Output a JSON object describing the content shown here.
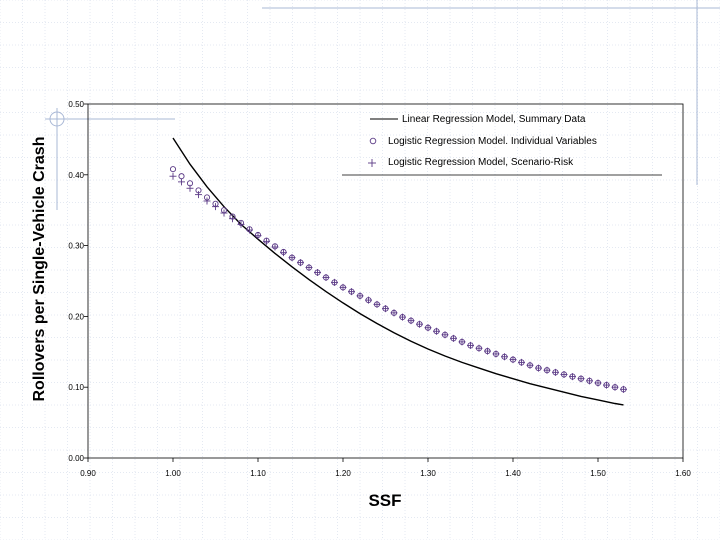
{
  "colors": {
    "grid_decoration": "#c9d3e6",
    "frame_decoration": "#a9b8d6",
    "curve": "#000000",
    "markers": "#5b3a86"
  },
  "chart_data": {
    "type": "line",
    "title": "",
    "xlabel": "SSF",
    "ylabel": "Rollovers per Single-Vehicle Crash",
    "xlim": [
      0.9,
      1.6
    ],
    "ylim": [
      0.0,
      0.5
    ],
    "x_ticks": [
      "0.90",
      "1.00",
      "1.10",
      "1.20",
      "1.30",
      "1.40",
      "1.50",
      "1.60"
    ],
    "y_ticks": [
      "0.00",
      "0.10",
      "0.20",
      "0.30",
      "0.40",
      "0.50"
    ],
    "grid": false,
    "legend_position": "top-right",
    "series": [
      {
        "name": "Linear Regression Model, Summary Data",
        "style": "line",
        "x": [
          1.0,
          1.02,
          1.04,
          1.06,
          1.08,
          1.1,
          1.12,
          1.14,
          1.16,
          1.18,
          1.2,
          1.22,
          1.24,
          1.26,
          1.28,
          1.3,
          1.32,
          1.34,
          1.36,
          1.38,
          1.4,
          1.42,
          1.44,
          1.46,
          1.48,
          1.5,
          1.52,
          1.53
        ],
        "y": [
          0.452,
          0.415,
          0.383,
          0.355,
          0.33,
          0.309,
          0.289,
          0.27,
          0.252,
          0.235,
          0.219,
          0.204,
          0.19,
          0.177,
          0.165,
          0.154,
          0.144,
          0.135,
          0.127,
          0.119,
          0.112,
          0.105,
          0.099,
          0.093,
          0.087,
          0.082,
          0.077,
          0.075
        ]
      },
      {
        "name": "Logistic Regression Model. Individual Variables",
        "style": "circle",
        "x": [
          1.0,
          1.01,
          1.02,
          1.03,
          1.04,
          1.05,
          1.06,
          1.07,
          1.08,
          1.09,
          1.1,
          1.11,
          1.12,
          1.13,
          1.14,
          1.15,
          1.16,
          1.17,
          1.18,
          1.19,
          1.2,
          1.21,
          1.22,
          1.23,
          1.24,
          1.25,
          1.26,
          1.27,
          1.28,
          1.29,
          1.3,
          1.31,
          1.32,
          1.33,
          1.34,
          1.35,
          1.36,
          1.37,
          1.38,
          1.39,
          1.4,
          1.41,
          1.42,
          1.43,
          1.44,
          1.45,
          1.46,
          1.47,
          1.48,
          1.49,
          1.5,
          1.51,
          1.52,
          1.53
        ],
        "y": [
          0.408,
          0.398,
          0.388,
          0.378,
          0.368,
          0.359,
          0.35,
          0.341,
          0.332,
          0.323,
          0.315,
          0.307,
          0.299,
          0.291,
          0.283,
          0.276,
          0.269,
          0.262,
          0.255,
          0.248,
          0.241,
          0.235,
          0.229,
          0.223,
          0.217,
          0.211,
          0.205,
          0.199,
          0.194,
          0.189,
          0.184,
          0.179,
          0.174,
          0.169,
          0.164,
          0.159,
          0.155,
          0.151,
          0.147,
          0.143,
          0.139,
          0.135,
          0.131,
          0.127,
          0.124,
          0.121,
          0.118,
          0.115,
          0.112,
          0.109,
          0.106,
          0.103,
          0.1,
          0.097
        ]
      },
      {
        "name": "Logistic Regression Model, Scenario-Risk",
        "style": "plus",
        "x": [
          1.0,
          1.01,
          1.02,
          1.03,
          1.04,
          1.05,
          1.06,
          1.07,
          1.08,
          1.09,
          1.1,
          1.11,
          1.12,
          1.13,
          1.14,
          1.15,
          1.16,
          1.17,
          1.18,
          1.19,
          1.2,
          1.21,
          1.22,
          1.23,
          1.24,
          1.25,
          1.26,
          1.27,
          1.28,
          1.29,
          1.3,
          1.31,
          1.32,
          1.33,
          1.34,
          1.35,
          1.36,
          1.37,
          1.38,
          1.39,
          1.4,
          1.41,
          1.42,
          1.43,
          1.44,
          1.45,
          1.46,
          1.47,
          1.48,
          1.49,
          1.5,
          1.51,
          1.52,
          1.53
        ],
        "y": [
          0.398,
          0.39,
          0.381,
          0.372,
          0.363,
          0.355,
          0.346,
          0.338,
          0.33,
          0.322,
          0.314,
          0.306,
          0.298,
          0.29,
          0.283,
          0.276,
          0.269,
          0.262,
          0.255,
          0.248,
          0.241,
          0.235,
          0.229,
          0.223,
          0.217,
          0.211,
          0.205,
          0.199,
          0.194,
          0.189,
          0.184,
          0.179,
          0.174,
          0.169,
          0.164,
          0.159,
          0.155,
          0.151,
          0.147,
          0.143,
          0.139,
          0.135,
          0.131,
          0.127,
          0.124,
          0.121,
          0.118,
          0.115,
          0.112,
          0.109,
          0.106,
          0.103,
          0.1,
          0.097
        ]
      }
    ]
  }
}
